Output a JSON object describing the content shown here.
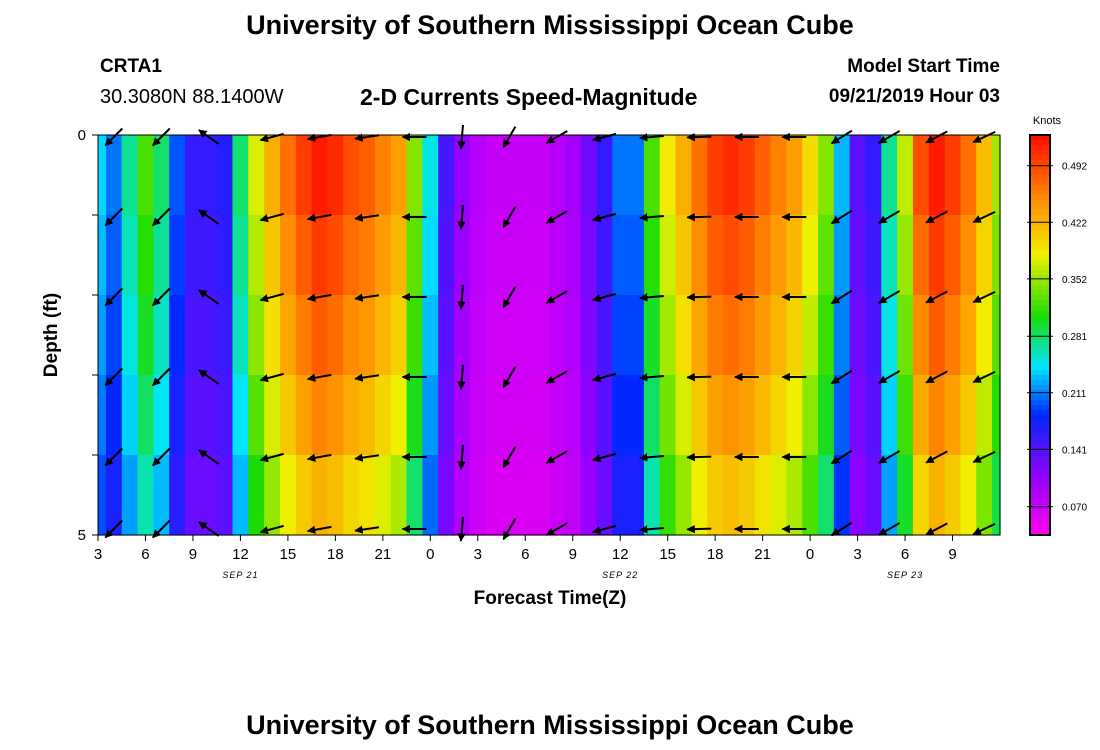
{
  "header": {
    "title": "University of Southern Mississippi Ocean Cube",
    "station": "CRTA1",
    "coords": "30.3080N 88.1400W",
    "subtitle": "2-D Currents Speed-Magnitude",
    "model_label": "Model Start Time",
    "model_time": "09/21/2019 Hour 03"
  },
  "footer": {
    "title": "University of Southern Mississippi Ocean Cube"
  },
  "chart_data": {
    "type": "heatmap",
    "title": "2-D Currents Speed-Magnitude",
    "xlabel": "Forecast Time(Z)",
    "ylabel": "Depth (ft)",
    "ylim": [
      0,
      5
    ],
    "yticks": [
      "0",
      "5"
    ],
    "xticks": [
      "3",
      "6",
      "9",
      "12",
      "15",
      "18",
      "21",
      "0",
      "3",
      "6",
      "9",
      "12",
      "15",
      "18",
      "21",
      "0",
      "3",
      "6",
      "9"
    ],
    "date_labels": [
      {
        "label": "SEP 21",
        "at_hour": 12
      },
      {
        "label": "SEP 22",
        "at_hour": 36
      },
      {
        "label": "SEP 23",
        "at_hour": 54
      }
    ],
    "x_hours": [
      3,
      4,
      5,
      6,
      7,
      8,
      9,
      10,
      11,
      12,
      13,
      14,
      15,
      16,
      17,
      18,
      19,
      20,
      21,
      22,
      23,
      24,
      25,
      26,
      27,
      28,
      29,
      30,
      31,
      32,
      33,
      34,
      35,
      36,
      37,
      38,
      39,
      40,
      41,
      42,
      43,
      44,
      45,
      46,
      47,
      48,
      49,
      50,
      51,
      52,
      53,
      54,
      55,
      56,
      57,
      58,
      59,
      60
    ],
    "depth_levels_ft": [
      0,
      1,
      2,
      3,
      4,
      5
    ],
    "speed_profile_knots": [
      0.23,
      0.2,
      0.26,
      0.31,
      0.27,
      0.19,
      0.15,
      0.15,
      0.16,
      0.27,
      0.36,
      0.41,
      0.45,
      0.48,
      0.5,
      0.49,
      0.47,
      0.46,
      0.44,
      0.42,
      0.33,
      0.24,
      0.14,
      0.1,
      0.08,
      0.07,
      0.07,
      0.07,
      0.07,
      0.08,
      0.09,
      0.12,
      0.15,
      0.2,
      0.2,
      0.31,
      0.37,
      0.41,
      0.45,
      0.48,
      0.49,
      0.48,
      0.46,
      0.44,
      0.42,
      0.38,
      0.33,
      0.22,
      0.13,
      0.15,
      0.26,
      0.35,
      0.47,
      0.5,
      0.48,
      0.45,
      0.4,
      0.34
    ],
    "depth_factor": [
      1.04,
      1.0,
      0.96,
      0.91,
      0.85,
      0.78
    ],
    "colorbar": {
      "label": "Knots",
      "min": 0.035,
      "max": 0.53,
      "ticks": [
        "0.492",
        "0.422",
        "0.352",
        "0.281",
        "0.211",
        "0.141",
        "0.070"
      ]
    },
    "arrow_hours": [
      4,
      7,
      10,
      14,
      17,
      20,
      23,
      26,
      29,
      32,
      35,
      38,
      41,
      44,
      47,
      50,
      53,
      56,
      59
    ],
    "arrow_angles_deg": [
      45,
      45,
      -35,
      15,
      10,
      8,
      0,
      85,
      60,
      30,
      15,
      5,
      2,
      0,
      0,
      32,
      30,
      28,
      25
    ]
  }
}
